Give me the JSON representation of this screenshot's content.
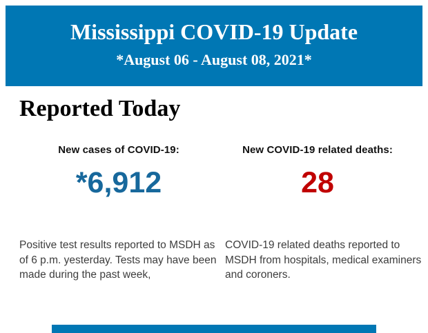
{
  "header": {
    "title": "Mississippi COVID-19 Update",
    "date_range": "*August 06 - August 08, 2021*",
    "background_color": "#0077b4",
    "text_color": "#ffffff"
  },
  "section": {
    "heading": "Reported Today"
  },
  "stats": {
    "cases": {
      "label": "New cases of COVID-19:",
      "value": "*6,912",
      "value_color": "#17689c",
      "description": "Positive test results reported to MSDH as of 6 p.m. yesterday. Tests may have been made during the past week,"
    },
    "deaths": {
      "label": "New COVID-19 related deaths:",
      "value": "28",
      "value_color": "#c00000",
      "description": "COVID-19 related deaths reported to MSDH from hospitals, medical examiners and coroners."
    }
  },
  "footer": {
    "next_section_color": "#0077b4"
  }
}
